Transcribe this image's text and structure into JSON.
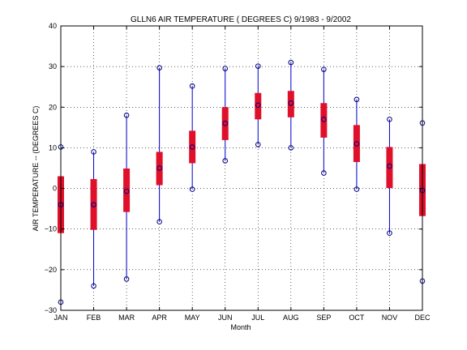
{
  "chart_data": {
    "type": "box",
    "title": "GLLN6  AIR TEMPERATURE ( DEGREES C) 9/1983 - 9/2002",
    "xlabel": "Month",
    "ylabel": "AIR TEMPERATURE -- (DEGREES C)",
    "categories": [
      "JAN",
      "FEB",
      "MAR",
      "APR",
      "MAY",
      "JUN",
      "JUL",
      "AUG",
      "SEP",
      "OCT",
      "NOV",
      "DEC"
    ],
    "ylim": [
      -30,
      40
    ],
    "yticks": [
      -30,
      -20,
      -10,
      0,
      10,
      20,
      30,
      40
    ],
    "yticks_labels": [
      "−30",
      "−20",
      "−10",
      "0",
      "10",
      "20",
      "30",
      "40"
    ],
    "grid": true,
    "series": [
      {
        "name": "max",
        "values": [
          10.2,
          9.0,
          18.0,
          29.7,
          25.2,
          29.5,
          30.1,
          31.0,
          29.3,
          21.9,
          17.0,
          16.1
        ]
      },
      {
        "name": "q3",
        "values": [
          3.0,
          2.3,
          4.9,
          9.0,
          14.2,
          20.0,
          23.5,
          24.0,
          21.0,
          15.6,
          10.2,
          6.0
        ]
      },
      {
        "name": "median",
        "values": [
          -4.0,
          -4.0,
          -0.7,
          5.0,
          10.2,
          16.0,
          20.5,
          21.0,
          17.0,
          11.0,
          5.5,
          -0.5
        ]
      },
      {
        "name": "q1",
        "values": [
          -11.0,
          -10.2,
          -5.8,
          0.8,
          6.2,
          11.9,
          17.0,
          17.5,
          12.5,
          6.5,
          0.1,
          -6.8
        ]
      },
      {
        "name": "min",
        "values": [
          -28.0,
          -24.0,
          -22.3,
          -8.2,
          -0.2,
          6.8,
          10.8,
          10.0,
          3.8,
          -0.2,
          -11.0,
          -22.8
        ]
      }
    ],
    "colors": {
      "whisker": "#0000cc",
      "box": "#e0102a",
      "marker": "#000080",
      "grid": "#000000"
    }
  }
}
